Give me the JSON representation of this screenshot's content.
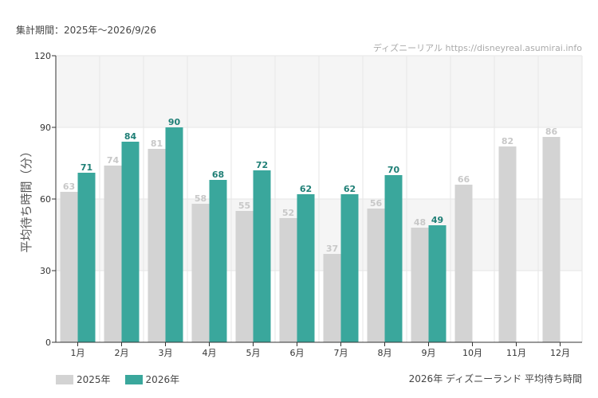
{
  "header": {
    "period": "集計期間：2025年～2026/9/26",
    "watermark": "ディズニーリアル https://disneyreal.asumirai.info"
  },
  "footer": {
    "chart_title": "2026年 ディズニーランド 平均待ち時間"
  },
  "colors": {
    "series_2025": "#d3d3d3",
    "series_2026": "#3aa79c",
    "label_2025": "#c8c8c8",
    "label_2026": "#1f7f76",
    "band": "#f5f5f5",
    "grid": "#e6e6e6"
  },
  "chart_data": {
    "type": "bar",
    "ylabel": "平均待ち時間（分）",
    "ylim": [
      0,
      120
    ],
    "yticks": [
      0,
      30,
      60,
      90,
      120
    ],
    "grid": true,
    "legend_position": "bottom-left",
    "categories": [
      "1月",
      "2月",
      "3月",
      "4月",
      "5月",
      "6月",
      "7月",
      "8月",
      "9月",
      "10月",
      "11月",
      "12月"
    ],
    "series": [
      {
        "name": "2025年",
        "values": [
          63,
          74,
          81,
          58,
          55,
          52,
          37,
          56,
          48,
          66,
          82,
          86
        ]
      },
      {
        "name": "2026年",
        "values": [
          71,
          84,
          90,
          68,
          72,
          62,
          62,
          70,
          49,
          null,
          null,
          null
        ]
      }
    ]
  }
}
